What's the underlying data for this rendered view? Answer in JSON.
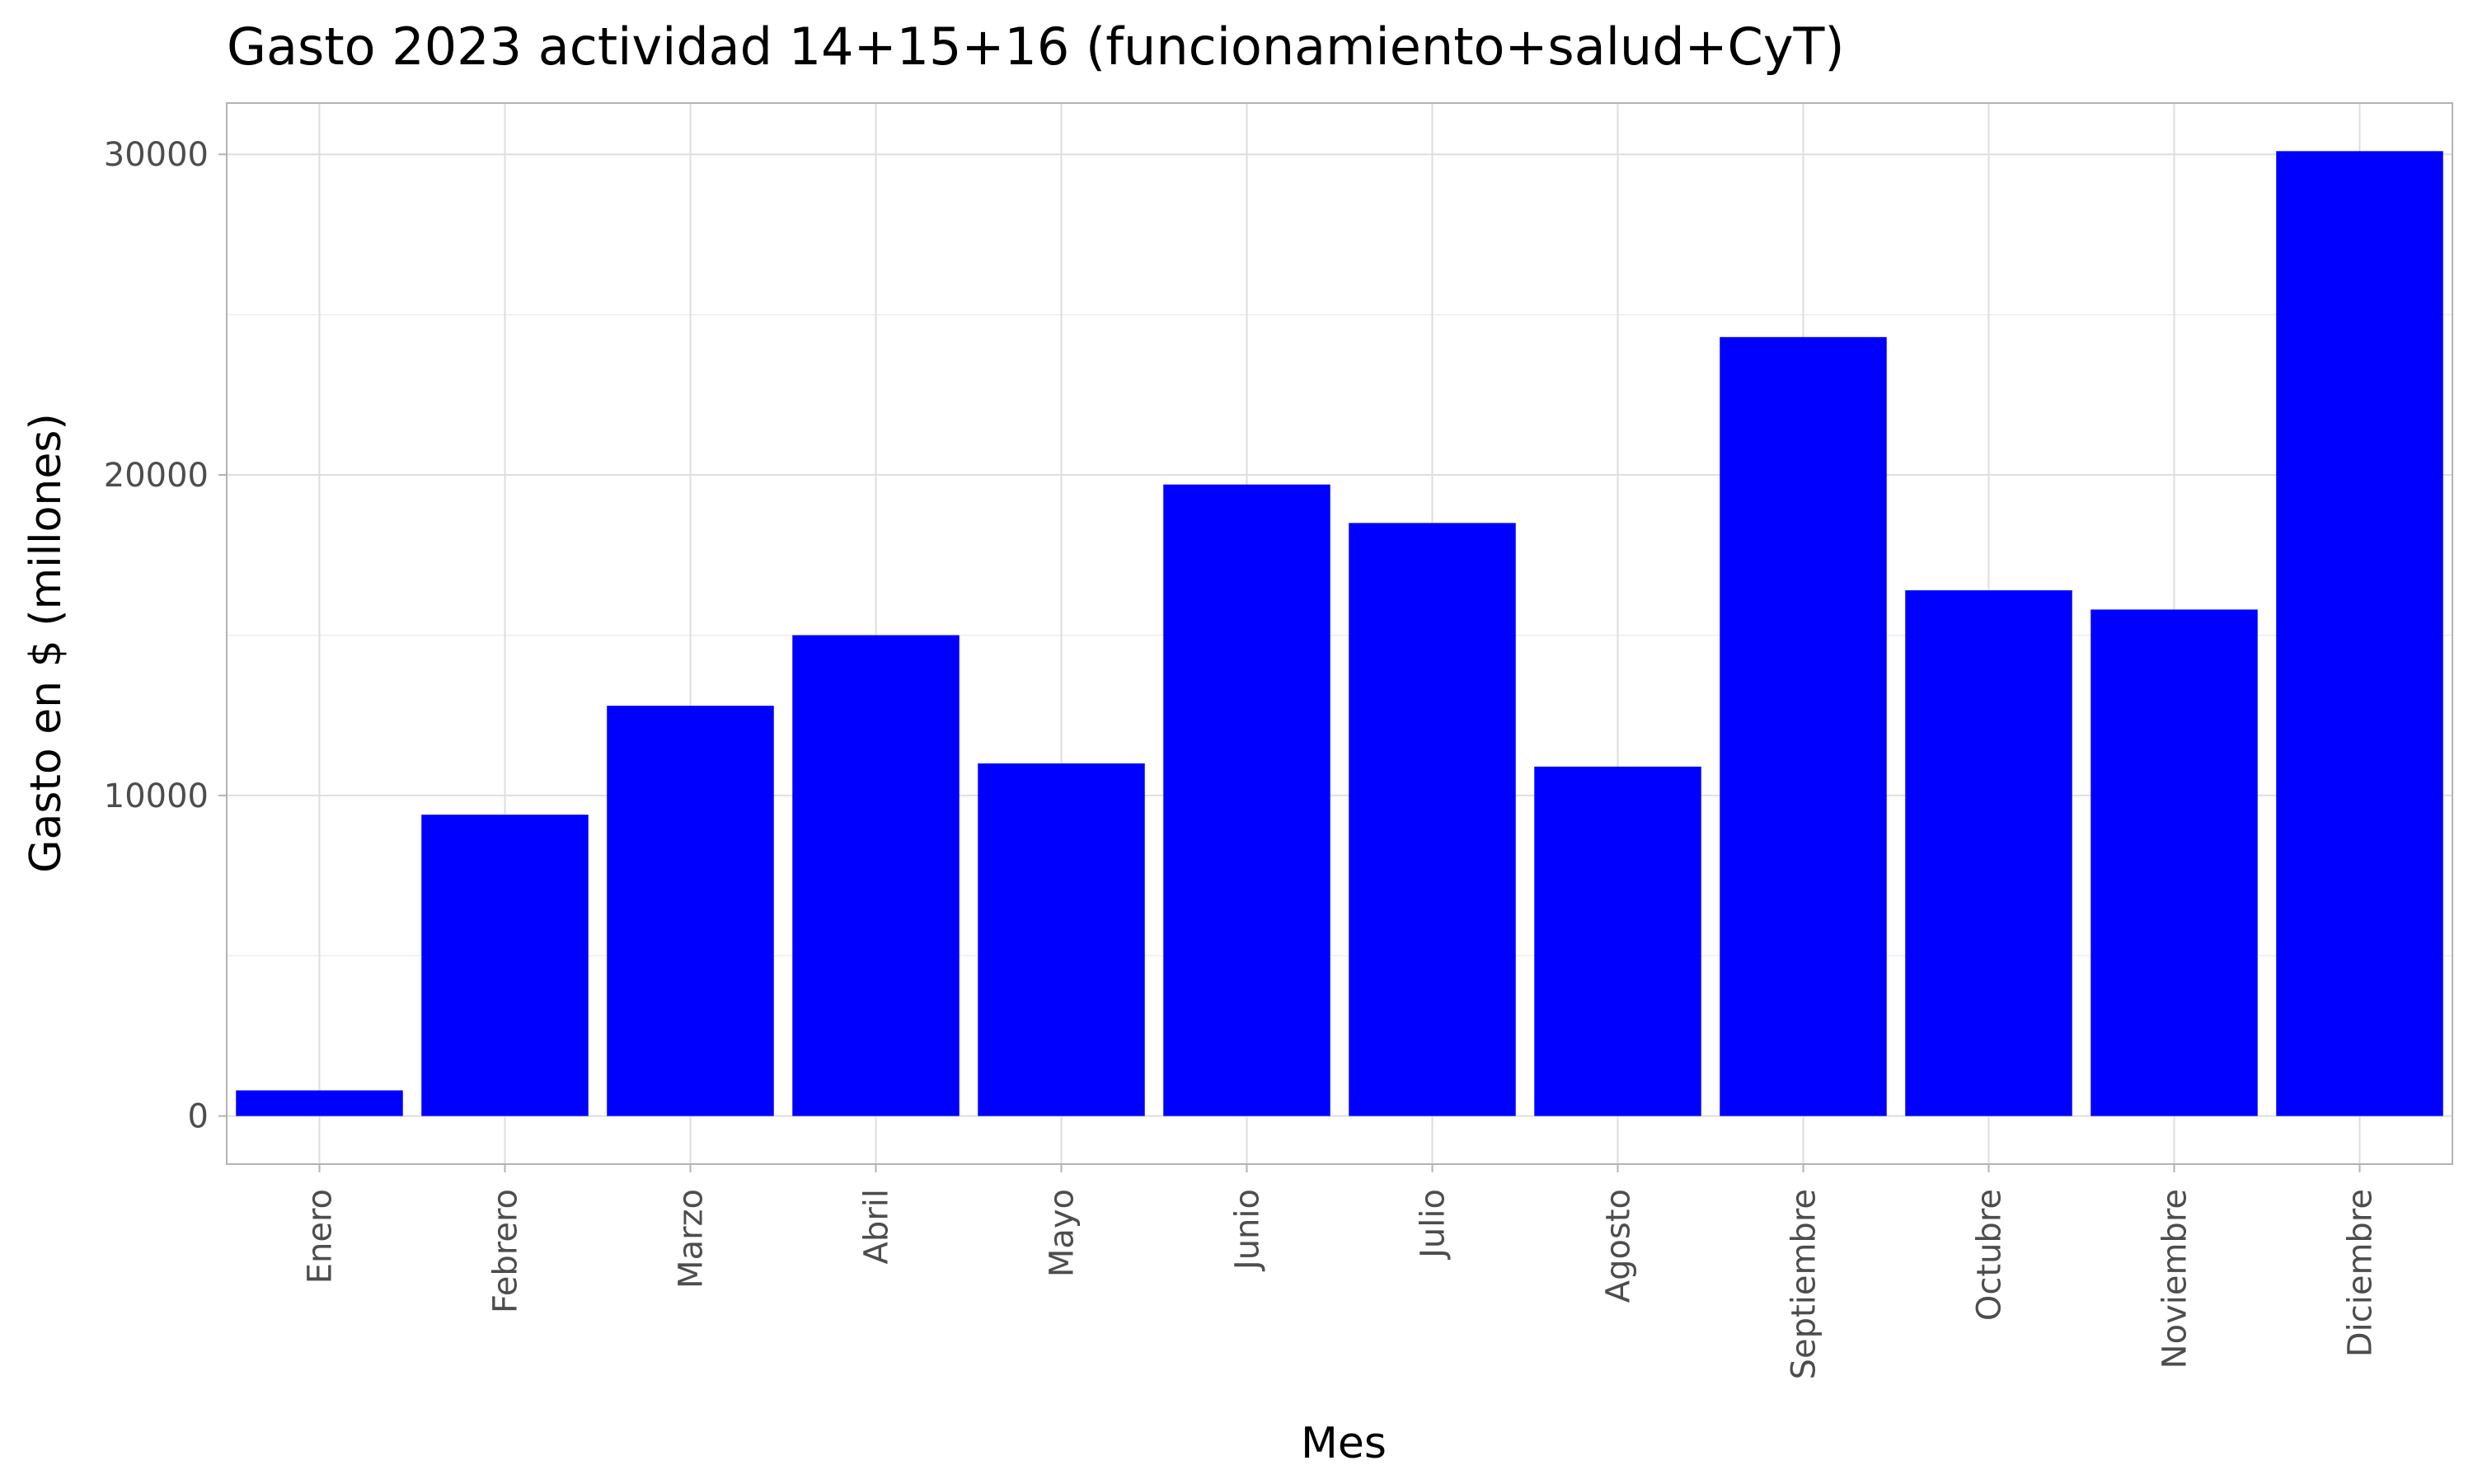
{
  "colors": {
    "bar": "#0000ff",
    "grid_major": "#dedede",
    "grid_minor": "#eeeeee",
    "panel_border": "#b3b3b3",
    "tick_text": "#4d4d4d"
  },
  "chart_data": {
    "type": "bar",
    "title": "Gasto 2023 actividad 14+15+16 (funcionamiento+salud+CyT)",
    "xlabel": "Mes",
    "ylabel": "Gasto en $ (millones)",
    "categories": [
      "Enero",
      "Febrero",
      "Marzo",
      "Abril",
      "Mayo",
      "Junio",
      "Julio",
      "Agosto",
      "Septiembre",
      "Octubre",
      "Noviembre",
      "Diciembre"
    ],
    "values": [
      800,
      9400,
      12800,
      15000,
      11000,
      19700,
      18500,
      10900,
      24300,
      16400,
      15800,
      30100
    ],
    "ylim": [
      -1500,
      31600
    ],
    "yticks": [
      0,
      10000,
      20000,
      30000
    ],
    "ytick_labels": [
      "0",
      "10000",
      "20000",
      "30000"
    ],
    "grid": true,
    "legend": "none"
  }
}
